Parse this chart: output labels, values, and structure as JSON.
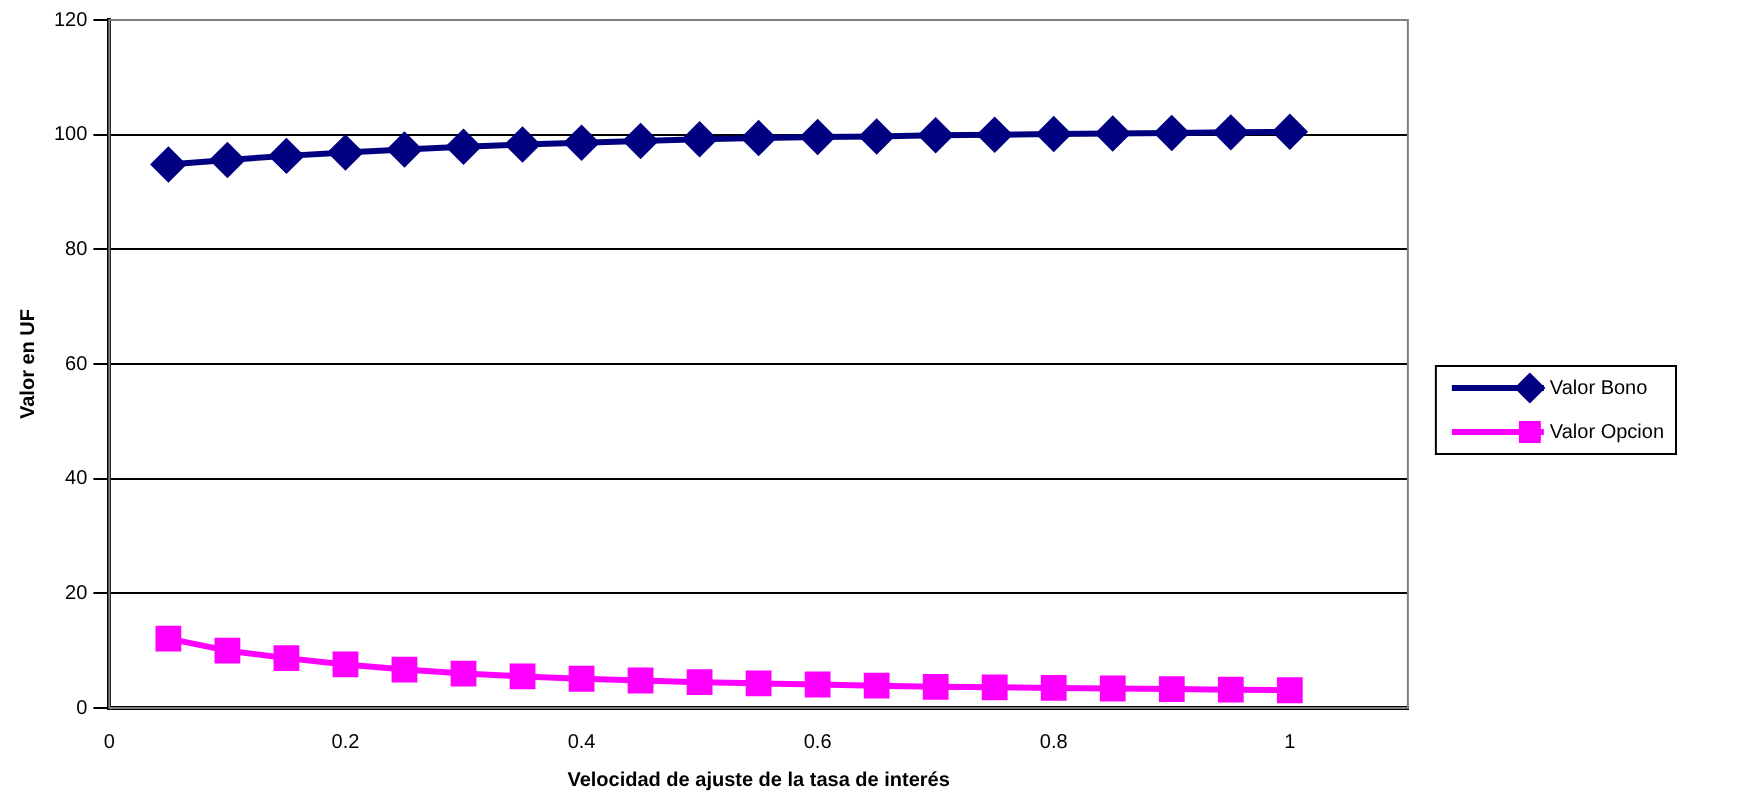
{
  "chart_data": {
    "type": "line",
    "xlabel": "Velocidad de ajuste de la tasa de interés",
    "ylabel": "Valor en UF",
    "x": [
      0.05,
      0.1,
      0.15,
      0.2,
      0.25,
      0.3,
      0.35,
      0.4,
      0.45,
      0.5,
      0.55,
      0.6,
      0.65,
      0.7,
      0.75,
      0.8,
      0.85,
      0.9,
      0.95,
      1
    ],
    "series": [
      {
        "name": "Valor Bono",
        "color": "#000080",
        "marker": "diamond",
        "values": [
          94.8,
          95.6,
          96.3,
          96.9,
          97.4,
          97.9,
          98.3,
          98.6,
          98.9,
          99.2,
          99.4,
          99.6,
          99.7,
          99.9,
          100.0,
          100.1,
          100.2,
          100.3,
          100.4,
          100.5
        ]
      },
      {
        "name": "Valor Opcion",
        "color": "#ff00ff",
        "marker": "square",
        "values": [
          12.1,
          10.0,
          8.7,
          7.6,
          6.7,
          6.0,
          5.5,
          5.1,
          4.8,
          4.5,
          4.3,
          4.1,
          3.9,
          3.7,
          3.6,
          3.5,
          3.4,
          3.3,
          3.2,
          3.1
        ]
      }
    ],
    "xlim": [
      0,
      1.1
    ],
    "xticks": [
      0,
      0.2,
      0.4,
      0.6,
      0.8,
      1
    ],
    "ylim": [
      0,
      120
    ],
    "yticks": [
      0,
      20,
      40,
      60,
      80,
      100,
      120
    ],
    "grid": "y",
    "legend": "right",
    "line_style": "solid"
  }
}
